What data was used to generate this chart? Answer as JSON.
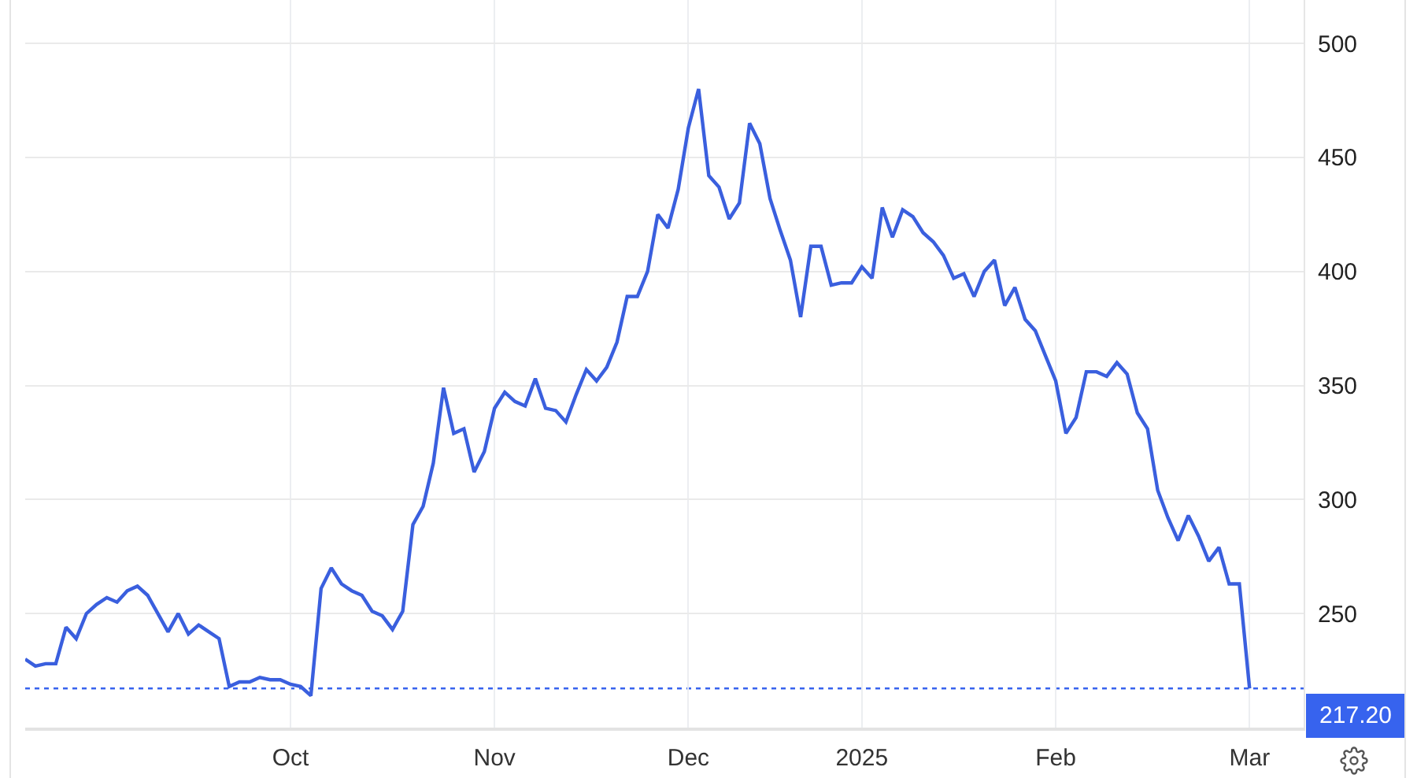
{
  "chart_data": {
    "type": "line",
    "categories": [
      null,
      null,
      null,
      null,
      null,
      null,
      null,
      null,
      null,
      null,
      null,
      null,
      null,
      null,
      null,
      null,
      null,
      null,
      null,
      null,
      null,
      null,
      null,
      null,
      null,
      null,
      "Oct",
      null,
      null,
      null,
      null,
      null,
      null,
      null,
      null,
      null,
      null,
      null,
      null,
      null,
      null,
      null,
      null,
      null,
      null,
      null,
      "Nov",
      null,
      null,
      null,
      null,
      null,
      null,
      null,
      null,
      null,
      null,
      null,
      null,
      null,
      null,
      null,
      null,
      null,
      null,
      "Dec",
      null,
      null,
      null,
      null,
      null,
      null,
      null,
      null,
      null,
      null,
      null,
      null,
      null,
      null,
      null,
      null,
      "2025",
      null,
      null,
      null,
      null,
      null,
      null,
      null,
      null,
      null,
      null,
      null,
      null,
      null,
      null,
      null,
      null,
      null,
      null,
      "Feb",
      null,
      null,
      null,
      null,
      null,
      null,
      null,
      null,
      null,
      null,
      null,
      null,
      null,
      null,
      null,
      null,
      null,
      null,
      "Mar"
    ],
    "series": [
      {
        "color": "#3a5fde",
        "values": [
          230,
          227,
          228,
          228,
          244,
          239,
          250,
          254,
          257,
          255,
          260,
          262,
          258,
          250,
          242,
          250,
          241,
          245,
          242,
          239,
          218,
          220,
          220,
          222,
          221,
          221,
          219,
          218,
          214,
          261,
          270,
          263,
          260,
          258,
          251,
          249,
          243,
          251,
          289,
          297,
          316,
          349,
          329,
          331,
          312,
          321,
          340,
          347,
          343,
          341,
          353,
          340,
          339,
          334,
          346,
          357,
          352,
          358,
          369,
          389,
          389,
          400,
          425,
          419,
          436,
          463,
          480,
          442,
          437,
          423,
          430,
          465,
          456,
          432,
          418,
          405,
          380,
          411,
          411,
          394,
          395,
          395,
          402,
          397,
          428,
          415,
          427,
          424,
          417,
          413,
          407,
          397,
          399,
          389,
          400,
          405,
          385,
          393,
          379,
          374,
          363,
          352,
          329,
          336,
          356,
          356,
          354,
          360,
          355,
          338,
          331,
          304,
          292,
          282,
          293,
          284,
          273,
          279,
          263,
          263,
          217.2
        ]
      }
    ],
    "ylim": [
      200,
      519
    ],
    "yticks": [
      250,
      300,
      350,
      400,
      450,
      500
    ],
    "grid": true,
    "ref_lines": [
      {
        "axis": "y",
        "value": 217.2,
        "label": "217.20",
        "color": "#3763ee",
        "line_style": "dotted"
      }
    ]
  }
}
